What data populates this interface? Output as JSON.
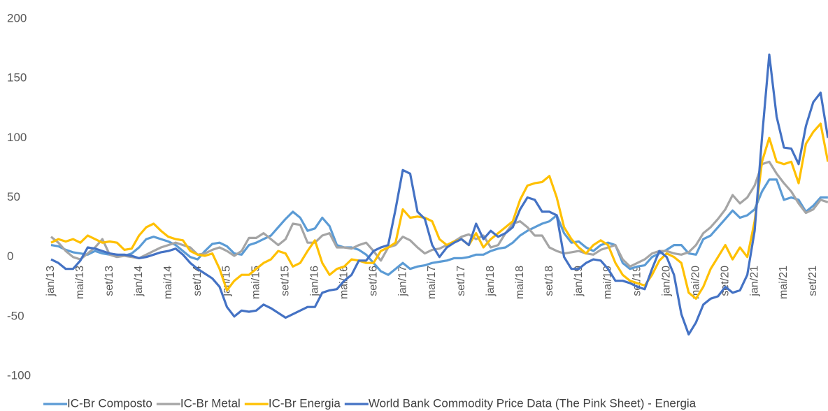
{
  "chart_data": {
    "type": "line",
    "categories": [
      "jan/13",
      null,
      null,
      null,
      "mai/13",
      null,
      null,
      null,
      "set/13",
      null,
      null,
      null,
      "jan/14",
      null,
      null,
      null,
      "mai/14",
      null,
      null,
      null,
      "set/14",
      null,
      null,
      null,
      "jan/15",
      null,
      null,
      null,
      "mai/15",
      null,
      null,
      null,
      "set/15",
      null,
      null,
      null,
      "jan/16",
      null,
      null,
      null,
      "mai/16",
      null,
      null,
      null,
      "set/16",
      null,
      null,
      null,
      "jan/17",
      null,
      null,
      null,
      "mai/17",
      null,
      null,
      null,
      "set/17",
      null,
      null,
      null,
      "jan/18",
      null,
      null,
      null,
      "mai/18",
      null,
      null,
      null,
      "set/18",
      null,
      null,
      null,
      "jan/19",
      null,
      null,
      null,
      "mai/19",
      null,
      null,
      null,
      "set/19",
      null,
      null,
      null,
      "jan/20",
      null,
      null,
      null,
      "mai/20",
      null,
      null,
      null,
      "set/20",
      null,
      null,
      null,
      "jan/21",
      null,
      null,
      null,
      "mai/21",
      null,
      null,
      null,
      "set/21",
      null,
      null
    ],
    "series": [
      {
        "name": "IC-Br Composto",
        "color": "#5b9bd5",
        "values": [
          10,
          9,
          6,
          4,
          3,
          2,
          5,
          3,
          2,
          2,
          1,
          3,
          8,
          15,
          17,
          15,
          13,
          10,
          5,
          0,
          -2,
          5,
          11,
          12,
          9,
          3,
          2,
          10,
          12,
          15,
          18,
          25,
          32,
          38,
          33,
          22,
          24,
          33,
          26,
          10,
          8,
          8,
          6,
          2,
          -5,
          -12,
          -15,
          -10,
          -5,
          -10,
          -8,
          -7,
          -5,
          -4,
          -3,
          -1,
          -1,
          0,
          2,
          2,
          5,
          7,
          8,
          12,
          18,
          22,
          25,
          28,
          30,
          35,
          20,
          12,
          13,
          8,
          5,
          10,
          12,
          10,
          -5,
          -10,
          -8,
          -7,
          0,
          3,
          6,
          10,
          10,
          3,
          2,
          15,
          18,
          25,
          32,
          39,
          33,
          35,
          40,
          55,
          65,
          65,
          48,
          50,
          48,
          38,
          43,
          50,
          50
        ]
      },
      {
        "name": "IC-Br  Metal",
        "color": "#a5a5a5",
        "values": [
          17,
          12,
          5,
          0,
          -2,
          3,
          8,
          15,
          2,
          0,
          1,
          0,
          -1,
          2,
          5,
          8,
          10,
          12,
          10,
          8,
          2,
          3,
          6,
          8,
          5,
          1,
          5,
          16,
          16,
          20,
          15,
          10,
          15,
          28,
          27,
          12,
          12,
          18,
          20,
          8,
          8,
          7,
          10,
          12,
          5,
          -3,
          8,
          10,
          17,
          14,
          8,
          3,
          6,
          7,
          10,
          13,
          17,
          19,
          15,
          18,
          8,
          10,
          20,
          28,
          30,
          25,
          18,
          18,
          8,
          5,
          3,
          4,
          5,
          3,
          2,
          6,
          8,
          10,
          -2,
          -8,
          -5,
          -2,
          3,
          5,
          5,
          3,
          2,
          4,
          10,
          20,
          25,
          32,
          40,
          52,
          45,
          50,
          60,
          78,
          80,
          70,
          62,
          55,
          45,
          37,
          40,
          48,
          46
        ]
      },
      {
        "name": "IC-Br Energia",
        "color": "#ffc000",
        "values": [
          12,
          15,
          13,
          15,
          12,
          18,
          15,
          12,
          13,
          12,
          6,
          7,
          18,
          25,
          28,
          22,
          17,
          15,
          14,
          5,
          2,
          1,
          3,
          -10,
          -28,
          -20,
          -15,
          -15,
          -10,
          -5,
          -2,
          5,
          3,
          -8,
          -5,
          5,
          14,
          -5,
          -15,
          -10,
          -8,
          -2,
          -3,
          -5,
          -5,
          5,
          8,
          12,
          40,
          33,
          34,
          33,
          30,
          15,
          10,
          13,
          15,
          10,
          20,
          8,
          15,
          20,
          25,
          30,
          48,
          60,
          62,
          63,
          68,
          50,
          25,
          15,
          8,
          3,
          10,
          14,
          10,
          -5,
          -15,
          -20,
          -22,
          -24,
          -15,
          -3,
          3,
          0,
          -5,
          -30,
          -35,
          -25,
          -10,
          0,
          10,
          -2,
          8,
          0,
          30,
          80,
          100,
          80,
          78,
          80,
          62,
          95,
          105,
          112,
          80
        ]
      },
      {
        "name": "World Bank Commodity Price Data (The Pink Sheet) - Energia",
        "color": "#4472c4",
        "values": [
          -2,
          -5,
          -10,
          -10,
          -3,
          8,
          7,
          5,
          3,
          2,
          2,
          1,
          -1,
          0,
          2,
          4,
          5,
          7,
          2,
          -5,
          -10,
          -14,
          -18,
          -25,
          -42,
          -50,
          -45,
          -46,
          -45,
          -40,
          -43,
          -47,
          -51,
          -48,
          -45,
          -42,
          -42,
          -30,
          -28,
          -27,
          -20,
          -15,
          -3,
          -3,
          5,
          8,
          10,
          40,
          73,
          70,
          38,
          32,
          10,
          0,
          8,
          12,
          15,
          10,
          28,
          15,
          22,
          17,
          20,
          25,
          40,
          50,
          48,
          38,
          38,
          35,
          0,
          -10,
          -10,
          -5,
          -2,
          -3,
          -10,
          -20,
          -20,
          -22,
          -25,
          -27,
          -10,
          5,
          0,
          -15,
          -48,
          -65,
          -55,
          -40,
          -35,
          -33,
          -25,
          -30,
          -28,
          -15,
          22,
          100,
          170,
          118,
          92,
          91,
          78,
          110,
          130,
          138,
          100
        ]
      }
    ],
    "ylim": [
      -100,
      200
    ],
    "yticks": [
      -100,
      -50,
      0,
      50,
      100,
      150,
      200
    ]
  }
}
